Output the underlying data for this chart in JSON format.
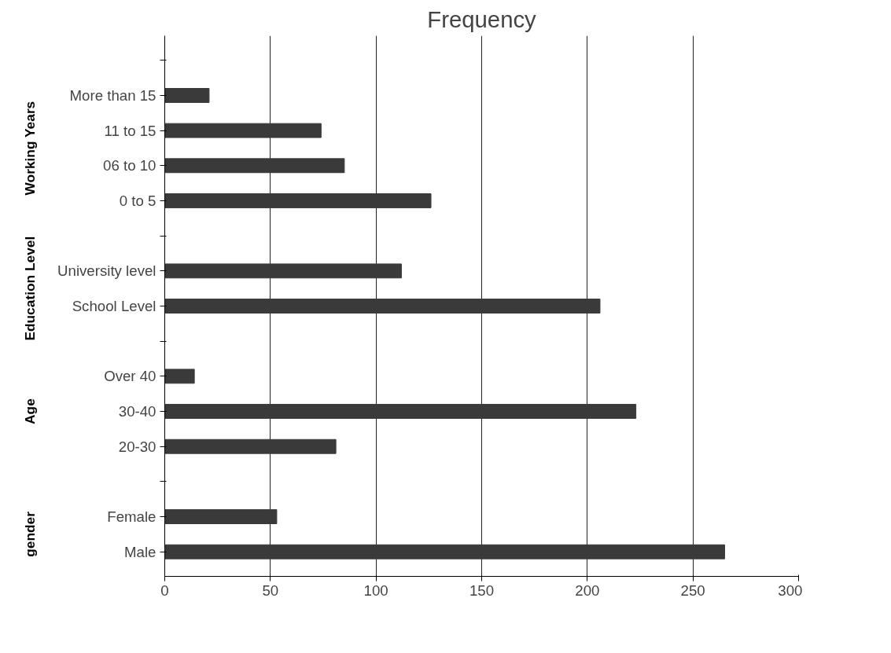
{
  "chart_data": {
    "type": "bar",
    "orientation": "horizontal",
    "title": "Frequency",
    "categories": [
      null,
      "More than 15",
      "11 to 15",
      "06 to 10",
      "0 to 5",
      null,
      "University level",
      "School Level",
      null,
      "Over 40",
      "30-40",
      "20-30",
      null,
      "Female",
      "Male"
    ],
    "values": [
      null,
      21,
      74,
      85,
      126,
      null,
      112,
      206,
      null,
      14,
      223,
      81,
      null,
      53,
      265
    ],
    "color": "#3a3a3a",
    "xlim": [
      0,
      300
    ],
    "xticks": [
      0,
      50,
      100,
      150,
      200,
      250,
      300
    ],
    "grid": "x",
    "annotations": [
      "Working Years",
      "Education Level",
      "Age",
      "gender"
    ]
  }
}
